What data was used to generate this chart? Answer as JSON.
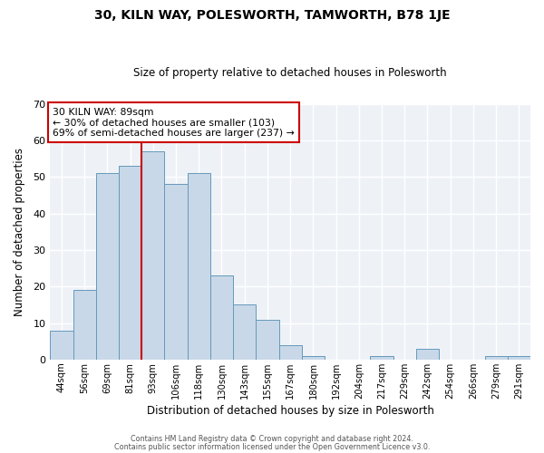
{
  "title": "30, KILN WAY, POLESWORTH, TAMWORTH, B78 1JE",
  "subtitle": "Size of property relative to detached houses in Polesworth",
  "xlabel": "Distribution of detached houses by size in Polesworth",
  "ylabel": "Number of detached properties",
  "bar_color": "#c8d8e8",
  "bar_edge_color": "#6699bb",
  "categories": [
    "44sqm",
    "56sqm",
    "69sqm",
    "81sqm",
    "93sqm",
    "106sqm",
    "118sqm",
    "130sqm",
    "143sqm",
    "155sqm",
    "167sqm",
    "180sqm",
    "192sqm",
    "204sqm",
    "217sqm",
    "229sqm",
    "242sqm",
    "254sqm",
    "266sqm",
    "279sqm",
    "291sqm"
  ],
  "values": [
    8,
    19,
    51,
    53,
    57,
    48,
    51,
    23,
    15,
    11,
    4,
    1,
    0,
    0,
    1,
    0,
    3,
    0,
    0,
    1,
    1
  ],
  "ylim": [
    0,
    70
  ],
  "yticks": [
    0,
    10,
    20,
    30,
    40,
    50,
    60,
    70
  ],
  "vline_index": 4,
  "vline_color": "#cc0000",
  "annotation_title": "30 KILN WAY: 89sqm",
  "annotation_line1": "← 30% of detached houses are smaller (103)",
  "annotation_line2": "69% of semi-detached houses are larger (237) →",
  "annotation_box_color": "#ffffff",
  "annotation_box_edge": "#cc0000",
  "footer1": "Contains HM Land Registry data © Crown copyright and database right 2024.",
  "footer2": "Contains public sector information licensed under the Open Government Licence v3.0.",
  "background_color": "#ffffff",
  "plot_bg_color": "#eef2f7"
}
